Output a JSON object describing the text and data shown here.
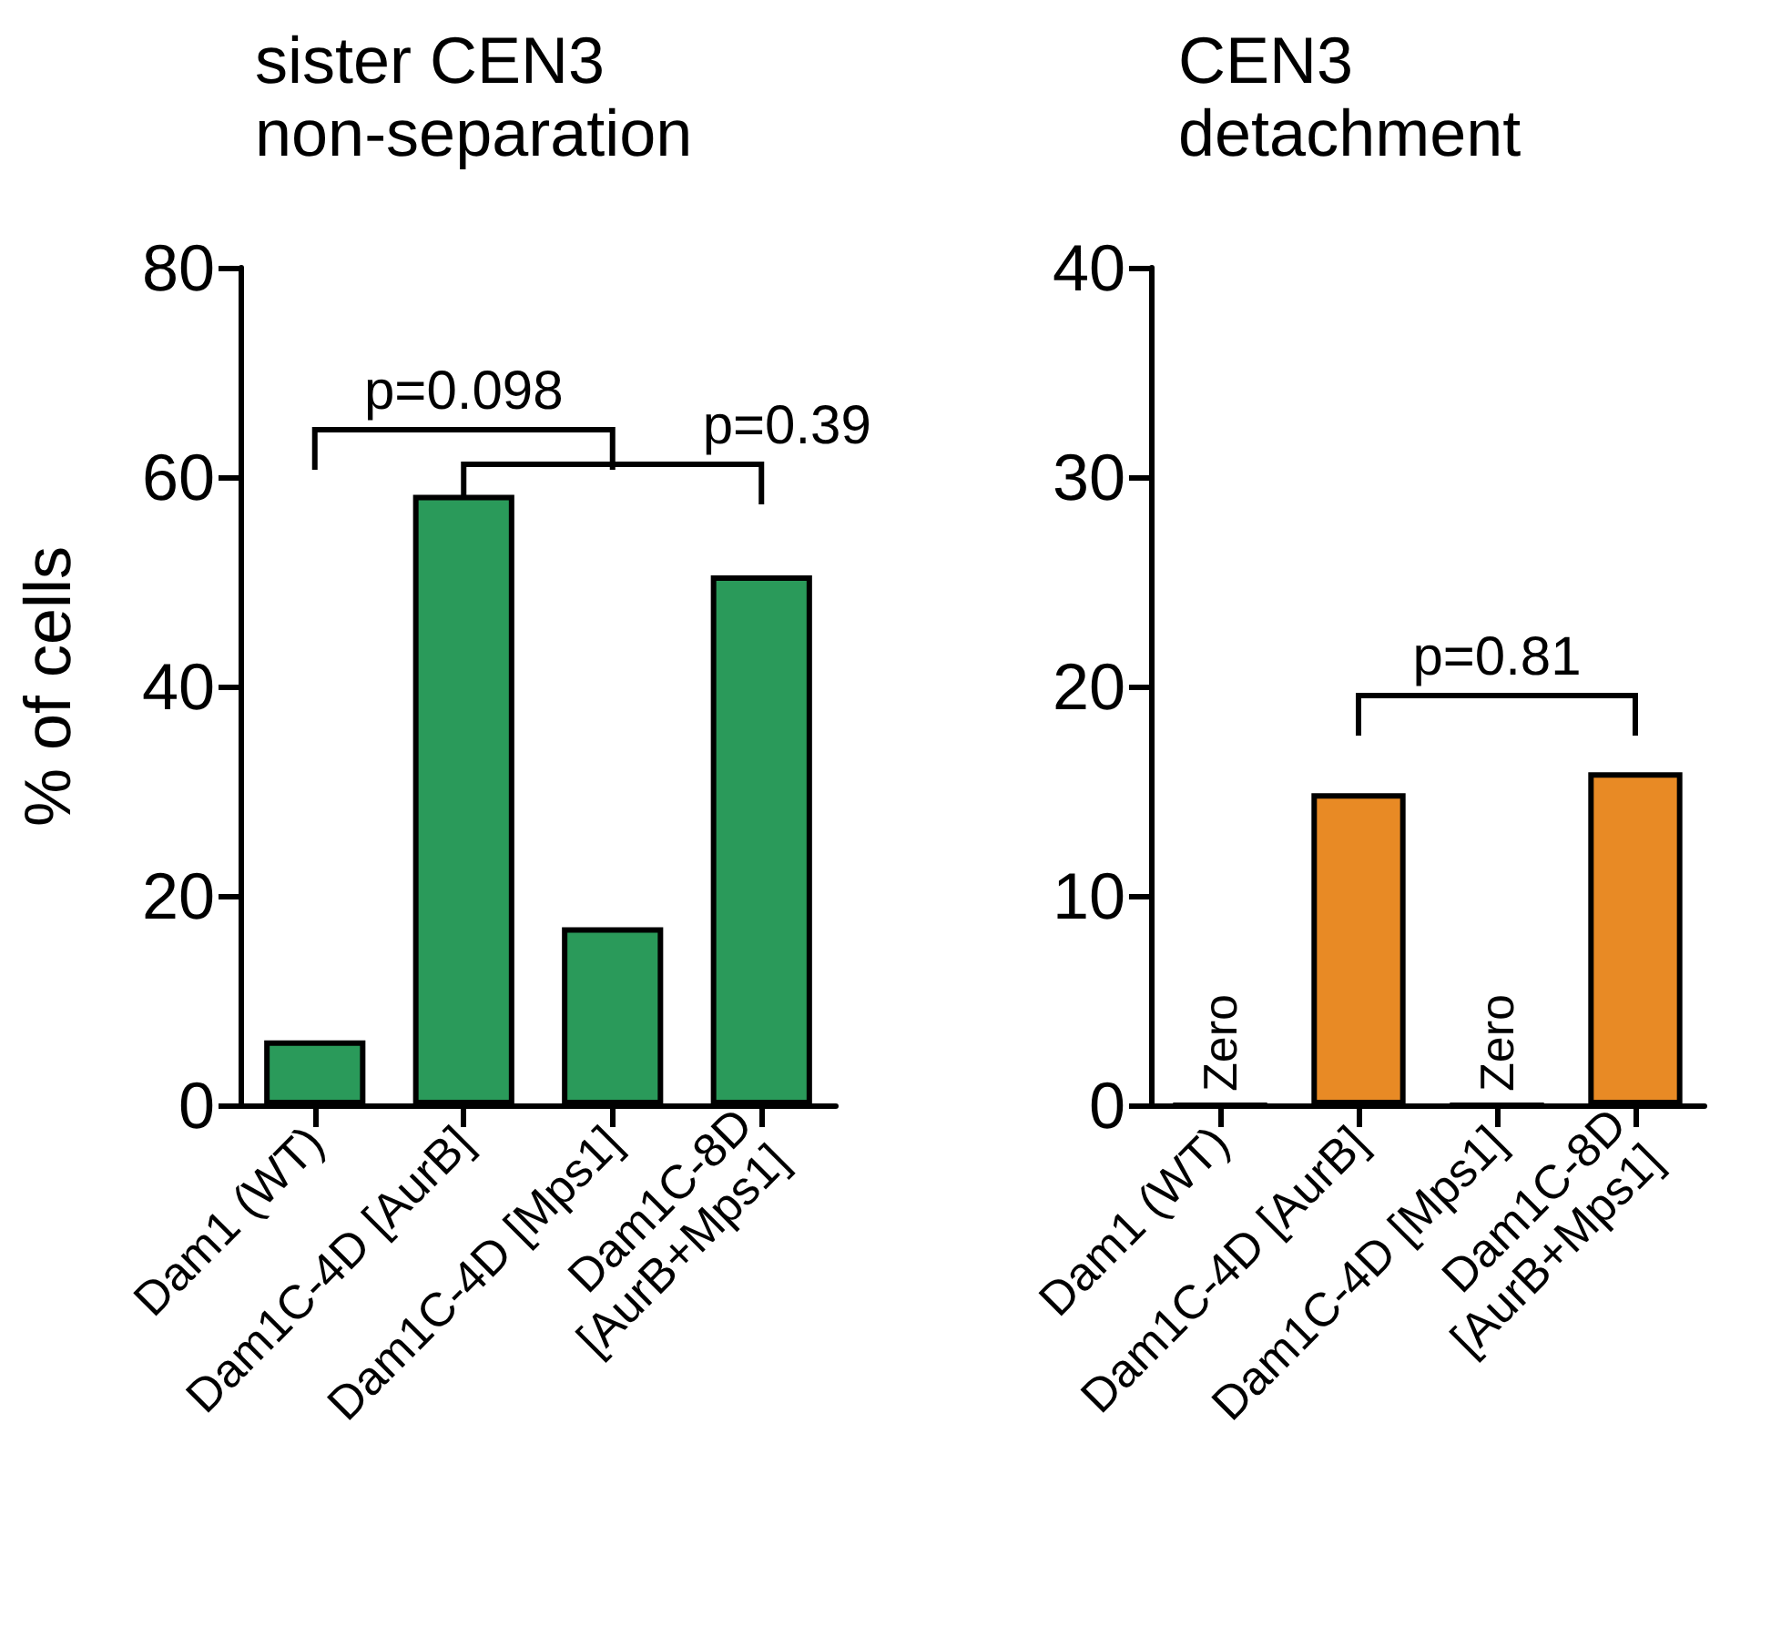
{
  "chart_data": [
    {
      "type": "bar",
      "title": "sister CEN3\nnon-separation",
      "ylabel": "% of cells",
      "categories": [
        "Dam1 (WT)",
        "Dam1C-4D [AurB]",
        "Dam1C-4D [Mps1]",
        "Dam1C-8D\n[AurB+Mps1]"
      ],
      "values": [
        6.2,
        58.3,
        17.0,
        50.6
      ],
      "color": "#2a9a5a",
      "ylim": [
        0,
        80
      ],
      "yticks": [
        0,
        20,
        40,
        60,
        80
      ],
      "annotations": [
        "p=0.098",
        "p=0.39"
      ]
    },
    {
      "type": "bar",
      "title": "CEN3\ndetachment",
      "categories": [
        "Dam1 (WT)",
        "Dam1C-4D [AurB]",
        "Dam1C-4D [Mps1]",
        "Dam1C-8D\n[AurB+Mps1]"
      ],
      "values": [
        0,
        14.9,
        0,
        15.9
      ],
      "value_labels": [
        "Zero",
        null,
        "Zero",
        null
      ],
      "color": "#e88a25",
      "ylim": [
        0,
        40
      ],
      "yticks": [
        0,
        10,
        20,
        30,
        40
      ],
      "annotations": [
        "p=0.81"
      ]
    }
  ]
}
